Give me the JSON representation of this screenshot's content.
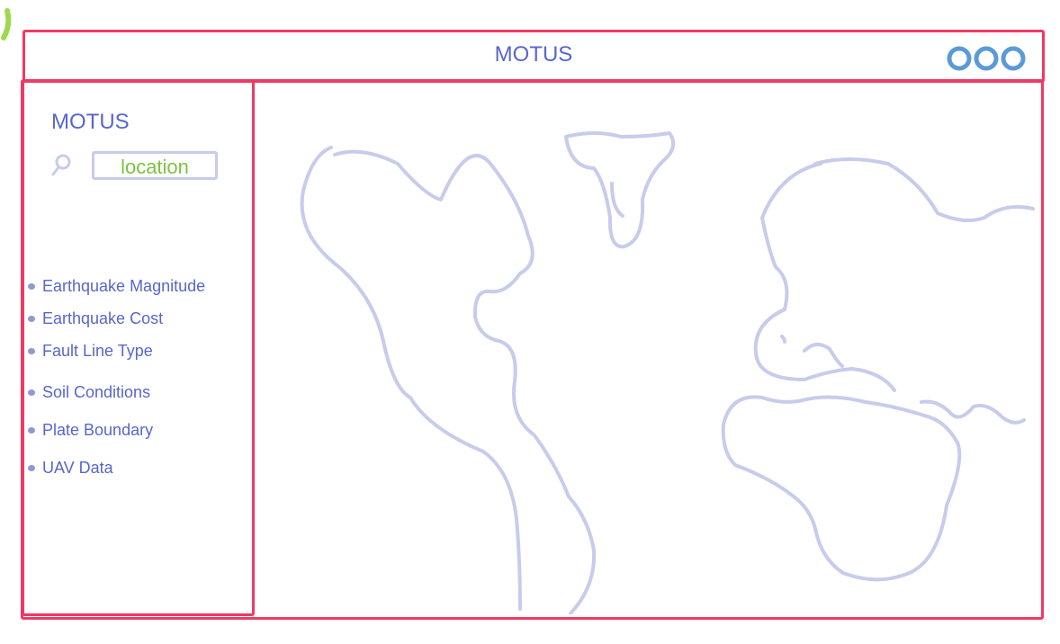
{
  "header": {
    "title": "MOTUS",
    "menu_icon": "more-options-icon"
  },
  "sidebar": {
    "title": "MOTUS",
    "search": {
      "icon": "search-icon",
      "placeholder": "location"
    },
    "layers": [
      {
        "label": "Earthquake Magnitude",
        "icon": "bullet-icon"
      },
      {
        "label": "Earthquake Cost",
        "icon": "bullet-icon"
      },
      {
        "label": "Fault Line Type",
        "icon": "bullet-icon"
      },
      {
        "label": "Soil Conditions",
        "icon": "bullet-icon"
      },
      {
        "label": "Plate Boundary",
        "icon": "bullet-icon"
      },
      {
        "label": "UAV Data",
        "icon": "bullet-icon"
      }
    ]
  },
  "map": {
    "icon": "world-map-icon"
  },
  "colors": {
    "frame": "#ee3a64",
    "text": "#5866cc",
    "placeholder": "#7dc242",
    "map_outline": "#c7cceb",
    "menu_icon": "#5b9bd5"
  }
}
